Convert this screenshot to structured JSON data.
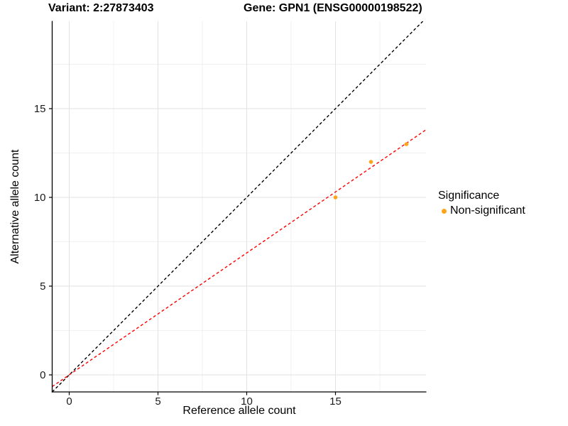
{
  "header": {
    "variant_title": "Variant: 2:27873403",
    "gene_title": "Gene: GPN1 (ENSG00000198522)"
  },
  "axes": {
    "x_label": "Reference allele count",
    "y_label": "Alternative allele count"
  },
  "legend": {
    "title": "Significance",
    "position": "right",
    "items": [
      {
        "label": "Non-significant",
        "color": "#FFA419"
      }
    ]
  },
  "chart_data": {
    "type": "scatter",
    "title_left": "Variant: 2:27873403",
    "title_right": "Gene: GPN1 (ENSG00000198522)",
    "xlabel": "Reference allele count",
    "ylabel": "Alternative allele count",
    "points": [
      {
        "x": 15,
        "y": 10,
        "group": "Non-significant"
      },
      {
        "x": 17,
        "y": 12,
        "group": "Non-significant"
      },
      {
        "x": 19,
        "y": 13,
        "group": "Non-significant"
      }
    ],
    "point_color": "#FFA419",
    "x_ticks": [
      0,
      5,
      10,
      15
    ],
    "y_ticks": [
      0,
      5,
      10,
      15
    ],
    "x_minor_ticks": [
      2.5,
      7.5,
      12.5,
      17.5
    ],
    "y_minor_ticks": [
      2.5,
      7.5,
      12.5,
      17.5
    ],
    "x_range": [
      -0.96,
      20.1
    ],
    "y_range": [
      -0.96,
      19.92
    ],
    "grid": true,
    "lines": [
      {
        "name": "identity-line",
        "slope": 1,
        "intercept": 0,
        "color": "#000000",
        "style": "dashed"
      },
      {
        "name": "regression-line",
        "slope": 0.687,
        "intercept": 0,
        "color": "#FF0000",
        "style": "dashed"
      }
    ],
    "legend_title": "Significance",
    "legend_entries": [
      "Non-significant"
    ],
    "legend_position": "right"
  }
}
